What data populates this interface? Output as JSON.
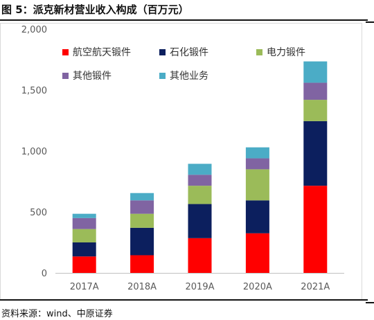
{
  "figure": {
    "title": "图 5：派克新材营业收入构成（百万元）",
    "source": "资料来源：wind、中原证券"
  },
  "chart_data": {
    "type": "bar",
    "stacked": true,
    "categories": [
      "2017A",
      "2018A",
      "2019A",
      "2020A",
      "2021A"
    ],
    "ylim": [
      0,
      2000
    ],
    "yticks": [
      0,
      500,
      1000,
      1500,
      2000
    ],
    "ytick_labels": [
      "0",
      "500",
      "1,000",
      "1,500",
      "2,000"
    ],
    "grid": false,
    "legend_position": "top-left",
    "series": [
      {
        "name": "航空航天锻件",
        "color": "#ff0000",
        "values": [
          135,
          145,
          285,
          325,
          715
        ]
      },
      {
        "name": "石化锻件",
        "color": "#0c1f5e",
        "values": [
          115,
          225,
          280,
          270,
          530
        ]
      },
      {
        "name": "电力锻件",
        "color": "#9bbb59",
        "values": [
          110,
          115,
          150,
          255,
          175
        ]
      },
      {
        "name": "其他锻件",
        "color": "#8064a2",
        "values": [
          90,
          110,
          90,
          90,
          140
        ]
      },
      {
        "name": "其他业务",
        "color": "#4bacc6",
        "values": [
          35,
          60,
          90,
          90,
          175
        ]
      }
    ]
  }
}
